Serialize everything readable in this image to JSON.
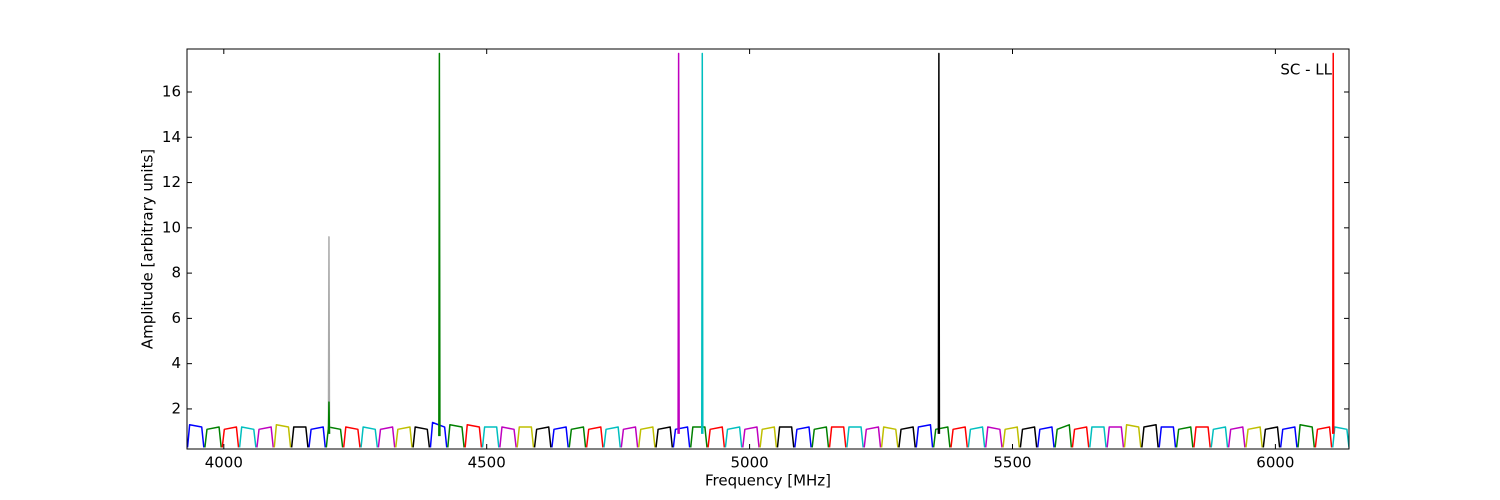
{
  "chart_data": {
    "type": "line",
    "xlabel": "Frequency [MHz]",
    "ylabel": "Amplitude [arbitrary units]",
    "annotation": "SC - LL",
    "xlim": [
      3930,
      6140
    ],
    "ylim": [
      0.23,
      17.9
    ],
    "xticks": [
      4000,
      4500,
      5000,
      5500,
      6000
    ],
    "yticks": [
      2,
      4,
      6,
      8,
      10,
      12,
      14,
      16
    ],
    "series": [
      {
        "color": "#0000ff",
        "x": [
          3931,
          3935,
          3958,
          3962,
          null,
          4162,
          4166,
          4189,
          4193,
          null,
          4393,
          4397,
          4420,
          4424,
          null,
          4624,
          4628,
          4651,
          4655,
          null,
          4855,
          4859,
          4882,
          4886,
          null,
          5086,
          5090,
          5113,
          5117,
          null,
          5317,
          5321,
          5344,
          5348,
          null,
          5548,
          5552,
          5575,
          5579,
          null,
          5779,
          5783,
          5806,
          5810,
          null,
          6010,
          6014,
          6037,
          6041
        ],
        "values": [
          0.3,
          1.3,
          1.2,
          0.3,
          null,
          0.3,
          1.1,
          1.2,
          0.3,
          null,
          0.3,
          1.4,
          1.2,
          0.3,
          null,
          0.3,
          1.1,
          1.2,
          0.3,
          null,
          0.3,
          1.1,
          1.2,
          0.3,
          null,
          0.3,
          1.1,
          1.2,
          0.3,
          null,
          0.3,
          1.2,
          1.3,
          0.3,
          null,
          0.3,
          1.1,
          1.2,
          0.3,
          null,
          0.3,
          1.2,
          1.2,
          0.3,
          null,
          0.3,
          1.1,
          1.2,
          0.3
        ]
      },
      {
        "color": "#008000",
        "x": [
          3964,
          3968,
          3991,
          3995,
          null,
          4195,
          4199,
          4222,
          4226,
          null,
          4426,
          4430,
          4453,
          4457,
          null,
          4657,
          4661,
          4684,
          4688,
          null,
          4888,
          4892,
          4915,
          4919,
          null,
          5119,
          5123,
          5146,
          5150,
          null,
          5350,
          5354,
          5377,
          5381,
          null,
          5581,
          5585,
          5608,
          5612,
          null,
          5812,
          5816,
          5839,
          5843,
          null,
          6043,
          6047,
          6070,
          6074
        ],
        "values": [
          0.3,
          1.1,
          1.2,
          0.3,
          null,
          0.3,
          1.2,
          1.1,
          0.3,
          null,
          0.3,
          1.3,
          1.2,
          0.3,
          null,
          0.3,
          1.1,
          1.2,
          0.3,
          null,
          0.3,
          1.2,
          1.2,
          0.3,
          null,
          0.3,
          1.1,
          1.2,
          0.3,
          null,
          0.3,
          1.1,
          1.2,
          0.3,
          null,
          0.3,
          1.1,
          1.3,
          0.3,
          null,
          0.3,
          1.1,
          1.2,
          0.3,
          null,
          0.3,
          1.3,
          1.2,
          0.3
        ]
      },
      {
        "color": "#ff0000",
        "x": [
          3997,
          4001,
          4024,
          4028,
          null,
          4228,
          4232,
          4255,
          4259,
          null,
          4459,
          4463,
          4486,
          4490,
          null,
          4690,
          4694,
          4717,
          4721,
          null,
          4921,
          4925,
          4948,
          4952,
          null,
          5152,
          5156,
          5179,
          5183,
          null,
          5383,
          5387,
          5410,
          5414,
          null,
          5614,
          5618,
          5641,
          5645,
          null,
          5845,
          5849,
          5872,
          5876,
          null,
          6076,
          6080,
          6103,
          6107
        ],
        "values": [
          0.3,
          1.1,
          1.2,
          0.3,
          null,
          0.3,
          1.2,
          1.1,
          0.3,
          null,
          0.3,
          1.3,
          1.2,
          0.3,
          null,
          0.3,
          1.1,
          1.2,
          0.3,
          null,
          0.3,
          1.1,
          1.2,
          0.3,
          null,
          0.3,
          1.2,
          1.2,
          0.3,
          null,
          0.3,
          1.1,
          1.2,
          0.3,
          null,
          0.3,
          1.1,
          1.2,
          0.3,
          null,
          0.3,
          1.2,
          1.2,
          0.3,
          null,
          0.3,
          1.1,
          1.2,
          0.3
        ]
      },
      {
        "color": "#00bfbf",
        "x": [
          4030,
          4034,
          4057,
          4061,
          null,
          4261,
          4265,
          4288,
          4292,
          null,
          4492,
          4496,
          4519,
          4523,
          null,
          4723,
          4727,
          4750,
          4754,
          null,
          4954,
          4958,
          4981,
          4985,
          null,
          5185,
          5189,
          5212,
          5216,
          null,
          5416,
          5420,
          5443,
          5447,
          null,
          5647,
          5651,
          5674,
          5678,
          null,
          5878,
          5882,
          5905,
          5909,
          null,
          6109,
          6113,
          6136,
          6140
        ],
        "values": [
          0.3,
          1.2,
          1.1,
          0.3,
          null,
          0.3,
          1.2,
          1.1,
          0.3,
          null,
          0.3,
          1.2,
          1.2,
          0.3,
          null,
          0.3,
          1.1,
          1.2,
          0.3,
          null,
          0.3,
          1.1,
          1.2,
          0.3,
          null,
          0.3,
          1.2,
          1.2,
          0.3,
          null,
          0.3,
          1.1,
          1.2,
          0.3,
          null,
          0.3,
          1.2,
          1.2,
          0.3,
          null,
          0.3,
          1.1,
          1.2,
          0.3,
          null,
          0.3,
          1.2,
          1.1,
          0.3
        ]
      },
      {
        "color": "#bf00bf",
        "x": [
          4063,
          4067,
          4090,
          4094,
          null,
          4294,
          4298,
          4321,
          4325,
          null,
          4525,
          4529,
          4552,
          4556,
          null,
          4756,
          4760,
          4783,
          4787,
          null,
          4987,
          4991,
          5014,
          5018,
          null,
          5218,
          5222,
          5245,
          5249,
          null,
          5449,
          5453,
          5476,
          5480,
          null,
          5680,
          5684,
          5707,
          5711,
          null,
          5911,
          5915,
          5938,
          5942
        ],
        "values": [
          0.3,
          1.1,
          1.2,
          0.3,
          null,
          0.3,
          1.1,
          1.2,
          0.3,
          null,
          0.3,
          1.2,
          1.1,
          0.3,
          null,
          0.3,
          1.1,
          1.2,
          0.3,
          null,
          0.3,
          1.1,
          1.2,
          0.3,
          null,
          0.3,
          1.1,
          1.2,
          0.3,
          null,
          0.3,
          1.2,
          1.1,
          0.3,
          null,
          0.3,
          1.2,
          1.2,
          0.3,
          null,
          0.3,
          1.1,
          1.2,
          0.3
        ]
      },
      {
        "color": "#bfbf00",
        "x": [
          4096,
          4100,
          4123,
          4127,
          null,
          4327,
          4331,
          4354,
          4358,
          null,
          4558,
          4562,
          4585,
          4589,
          null,
          4789,
          4793,
          4816,
          4820,
          null,
          5020,
          5024,
          5047,
          5051,
          null,
          5251,
          5255,
          5278,
          5282,
          null,
          5482,
          5486,
          5509,
          5513,
          null,
          5713,
          5717,
          5740,
          5744,
          null,
          5944,
          5948,
          5971,
          5975
        ],
        "values": [
          0.3,
          1.3,
          1.2,
          0.3,
          null,
          0.3,
          1.1,
          1.2,
          0.3,
          null,
          0.3,
          1.2,
          1.2,
          0.3,
          null,
          0.3,
          1.1,
          1.2,
          0.3,
          null,
          0.3,
          1.1,
          1.2,
          0.3,
          null,
          0.3,
          1.2,
          1.1,
          0.3,
          null,
          0.3,
          1.1,
          1.2,
          0.3,
          null,
          0.3,
          1.3,
          1.2,
          0.3,
          null,
          0.3,
          1.1,
          1.2,
          0.3
        ]
      },
      {
        "color": "#000000",
        "x": [
          4129,
          4133,
          4156,
          4160,
          null,
          4360,
          4364,
          4387,
          4391,
          null,
          4591,
          4595,
          4618,
          4622,
          null,
          4822,
          4826,
          4849,
          4853,
          null,
          5053,
          5057,
          5080,
          5084,
          null,
          5284,
          5288,
          5311,
          5315,
          null,
          5515,
          5519,
          5542,
          5546,
          null,
          5746,
          5750,
          5773,
          5777,
          null,
          5977,
          5981,
          6004,
          6008
        ],
        "values": [
          0.3,
          1.2,
          1.2,
          0.3,
          null,
          0.3,
          1.2,
          1.1,
          0.3,
          null,
          0.3,
          1.1,
          1.2,
          0.3,
          null,
          0.3,
          1.1,
          1.2,
          0.3,
          null,
          0.3,
          1.2,
          1.2,
          0.3,
          null,
          0.3,
          1.1,
          1.2,
          0.3,
          null,
          0.3,
          1.1,
          1.2,
          0.3,
          null,
          0.3,
          1.2,
          1.3,
          0.3,
          null,
          0.3,
          1.1,
          1.2,
          0.3
        ]
      },
      {
        "color": "#aaaaaa",
        "x": [
          4199,
          4200,
          4201
        ],
        "values": [
          0.9,
          9.6,
          0.9
        ]
      },
      {
        "color": "#008000",
        "x": [
          4199,
          4200,
          4201
        ],
        "values": [
          0.9,
          2.3,
          0.9
        ]
      },
      {
        "color": "#008000",
        "x": [
          4409,
          4410,
          4411
        ],
        "values": [
          0.8,
          17.7,
          0.8
        ]
      },
      {
        "color": "#bf00bf",
        "x": [
          4864,
          4865,
          4866
        ],
        "values": [
          0.9,
          17.7,
          0.9
        ]
      },
      {
        "color": "#00bfbf",
        "x": [
          4909,
          4910,
          4911
        ],
        "values": [
          0.9,
          17.7,
          0.9
        ]
      },
      {
        "color": "#000000",
        "x": [
          5359,
          5360,
          5361
        ],
        "values": [
          0.9,
          17.7,
          0.9
        ]
      },
      {
        "color": "#ff0000",
        "x": [
          6109,
          6110,
          6111
        ],
        "values": [
          0.9,
          17.7,
          0.9
        ]
      }
    ]
  }
}
